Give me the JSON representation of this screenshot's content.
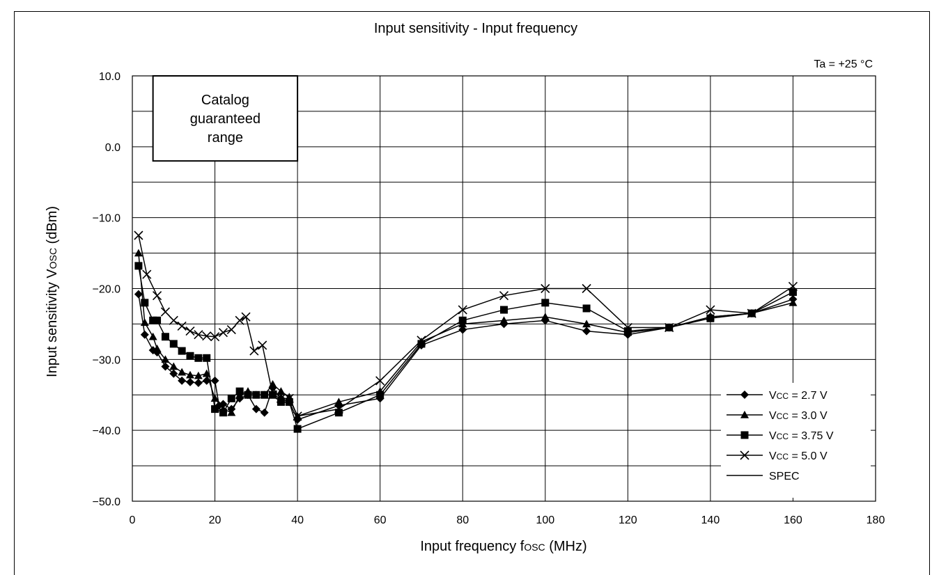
{
  "chart_data": {
    "type": "line",
    "title": "Input sensitivity - Input frequency",
    "condition": "Ta = +25 °C",
    "xlabel_main": "Input frequency f",
    "xlabel_sub": "OSC",
    "xlabel_unit": " (MHz)",
    "ylabel_main": "Input sensitivity V",
    "ylabel_sub": "OSC",
    "ylabel_unit": " (dBm)",
    "xlim": [
      0,
      180
    ],
    "ylim": [
      -50,
      10
    ],
    "x_ticks": [
      "0",
      "20",
      "40",
      "60",
      "80",
      "100",
      "120",
      "140",
      "160",
      "180"
    ],
    "y_ticks": [
      "10.0",
      "0.0",
      "−10.0",
      "−20.0",
      "−30.0",
      "−40.0",
      "−50.0"
    ],
    "grid": true,
    "annotation_lines": [
      "Catalog",
      "guaranteed",
      "range"
    ],
    "annotation_box": {
      "x_range": [
        5,
        40
      ],
      "y_range": [
        -2,
        10
      ]
    },
    "legend_position": "bottom-right",
    "series": [
      {
        "name": "Vcc = 2.7 V",
        "legend_main": "V",
        "legend_sub": "CC",
        "legend_rest": " = 2.7 V",
        "marker": "diamond",
        "x": [
          1.5,
          3,
          5,
          6,
          8,
          10,
          12,
          14,
          16,
          18,
          20,
          21,
          22,
          24,
          26,
          28,
          30,
          32,
          34,
          36,
          38,
          40,
          50,
          60,
          70,
          80,
          90,
          100,
          110,
          120,
          130,
          140,
          150,
          160
        ],
        "y": [
          -20.8,
          -26.5,
          -28.7,
          -29.0,
          -31.0,
          -32.0,
          -33.0,
          -33.2,
          -33.3,
          -33.0,
          -33.0,
          -36.5,
          -36.3,
          -37.0,
          -35.5,
          -35.0,
          -37.0,
          -37.5,
          -34.0,
          -35.5,
          -36.0,
          -38.5,
          -36.5,
          -35.5,
          -28.0,
          -25.8,
          -25.0,
          -24.5,
          -26.0,
          -26.5,
          -25.5,
          -24.0,
          -23.5,
          -21.5
        ]
      },
      {
        "name": "Vcc = 3.0 V",
        "legend_main": "V",
        "legend_sub": "CC",
        "legend_rest": " = 3.0 V",
        "marker": "triangle",
        "x": [
          1.5,
          3,
          5,
          6,
          8,
          10,
          12,
          14,
          16,
          18,
          20,
          22,
          24,
          26,
          28,
          30,
          32,
          34,
          36,
          38,
          40,
          50,
          60,
          70,
          80,
          90,
          100,
          110,
          120,
          130,
          140,
          150,
          160
        ],
        "y": [
          -15.0,
          -24.8,
          -26.8,
          -28.5,
          -30.0,
          -31.0,
          -31.8,
          -32.2,
          -32.3,
          -32.0,
          -35.5,
          -37.0,
          -37.5,
          -35.0,
          -34.5,
          -35.0,
          -35.0,
          -33.5,
          -34.5,
          -35.3,
          -38.0,
          -36.0,
          -34.5,
          -27.5,
          -25.0,
          -24.5,
          -24.0,
          -25.0,
          -26.2,
          -25.5,
          -24.0,
          -23.5,
          -22.0
        ]
      },
      {
        "name": "Vcc = 3.75 V",
        "legend_main": "V",
        "legend_sub": "CC",
        "legend_rest": " = 3.75 V",
        "marker": "square",
        "x": [
          1.5,
          3,
          5,
          6,
          8,
          10,
          12,
          14,
          16,
          18,
          20,
          22,
          24,
          26,
          28,
          30,
          32,
          34,
          36,
          38,
          40,
          50,
          60,
          70,
          80,
          90,
          100,
          110,
          120,
          130,
          140,
          150,
          160
        ],
        "y": [
          -16.8,
          -22.0,
          -24.5,
          -24.5,
          -26.8,
          -27.8,
          -28.8,
          -29.5,
          -29.8,
          -29.8,
          -37.0,
          -37.5,
          -35.5,
          -34.5,
          -35.0,
          -35.0,
          -35.0,
          -35.0,
          -36.0,
          -36.0,
          -39.8,
          -37.5,
          -35.0,
          -27.8,
          -24.5,
          -23.0,
          -22.0,
          -22.8,
          -26.0,
          -25.5,
          -24.2,
          -23.5,
          -20.5
        ]
      },
      {
        "name": "Vcc = 5.0 V",
        "legend_main": "V",
        "legend_sub": "CC",
        "legend_rest": " = 5.0 V",
        "marker": "x",
        "x": [
          1.5,
          3.5,
          6,
          8,
          10,
          12,
          14,
          16,
          18,
          20,
          22,
          24,
          26,
          27.5,
          29.5,
          31.5,
          34,
          36,
          38,
          40,
          50,
          60,
          70,
          80,
          90,
          100,
          110,
          120,
          130,
          140,
          150,
          160
        ],
        "y": [
          -12.5,
          -18.0,
          -21.0,
          -23.3,
          -24.5,
          -25.3,
          -26.0,
          -26.5,
          -26.7,
          -26.8,
          -26.2,
          -25.8,
          -24.5,
          -24.0,
          -28.8,
          -28.0,
          -35.0,
          -35.5,
          -35.5,
          -38.0,
          -37.0,
          -33.0,
          -27.3,
          -23.0,
          -21.0,
          -20.0,
          -20.0,
          -25.5,
          -25.5,
          -23.0,
          -23.5,
          -19.7
        ]
      },
      {
        "name": "SPEC",
        "legend_main": "SPEC",
        "legend_sub": "",
        "legend_rest": "",
        "marker": "line",
        "x": [],
        "y": []
      }
    ]
  }
}
